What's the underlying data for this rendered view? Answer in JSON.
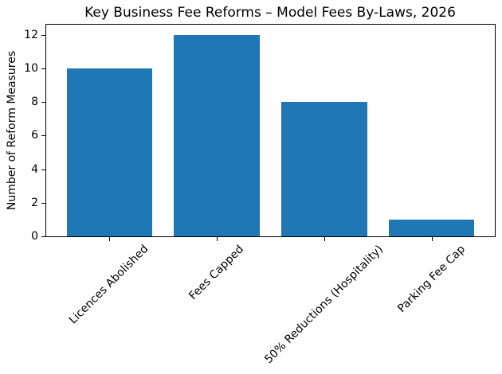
{
  "chart_data": {
    "type": "bar",
    "title": "Key Business Fee Reforms – Model Fees By-Laws, 2026",
    "xlabel": "",
    "ylabel": "Number of Reform Measures",
    "categories": [
      "Licences Abolished",
      "Fees Capped",
      "50% Reductions (Hospitality)",
      "Parking Fee Cap"
    ],
    "values": [
      10,
      12,
      8,
      1
    ],
    "yticks": [
      0,
      2,
      4,
      6,
      8,
      10,
      12
    ],
    "ylim": [
      0,
      12.6
    ],
    "xlim": [
      -0.59,
      3.59
    ],
    "bar_width": 0.8,
    "bar_color": "#1f77b4",
    "spine_color": "#000000",
    "text_color": "#000000",
    "grid": false,
    "legend_position": "none",
    "xtick_rotation_deg": 45
  }
}
